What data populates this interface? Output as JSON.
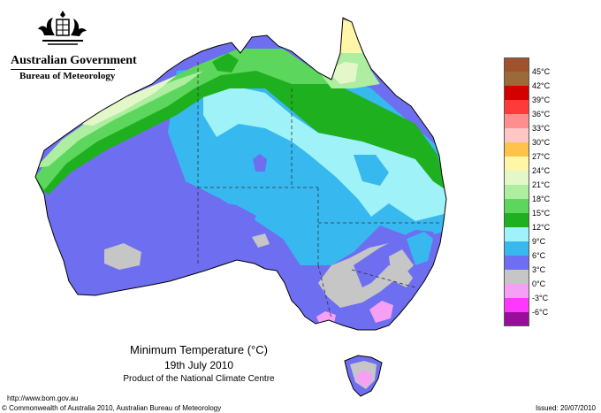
{
  "header": {
    "government": "Australian Government",
    "bureau": "Bureau of Meteorology"
  },
  "map": {
    "title": "Minimum Temperature (°C)",
    "date": "19th July 2010",
    "product": "Product of the National Climate Centre",
    "url": "http://www.bom.gov.au",
    "copyright": "© Commonwealth of Australia 2010, Australian Bureau of Meteorology",
    "issued": "Issued: 20/07/2010"
  },
  "legend": [
    {
      "label": "45°C",
      "color": "#a0522d"
    },
    {
      "label": "42°C",
      "color": "#9c6a3a"
    },
    {
      "label": "39°C",
      "color": "#d40000"
    },
    {
      "label": "36°C",
      "color": "#ff3a3a"
    },
    {
      "label": "33°C",
      "color": "#ff8f8f"
    },
    {
      "label": "30°C",
      "color": "#ffc6c6"
    },
    {
      "label": "27°C",
      "color": "#ffc24a"
    },
    {
      "label": "24°C",
      "color": "#fff6a8"
    },
    {
      "label": "21°C",
      "color": "#e4f7c9"
    },
    {
      "label": "18°C",
      "color": "#aeeea0"
    },
    {
      "label": "15°C",
      "color": "#5cd65c"
    },
    {
      "label": "12°C",
      "color": "#1fb01f"
    },
    {
      "label": "9°C",
      "color": "#9ff2f7"
    },
    {
      "label": "6°C",
      "color": "#37b8ef"
    },
    {
      "label": "3°C",
      "color": "#6e6ef0"
    },
    {
      "label": "0°C",
      "color": "#c6c6c6"
    },
    {
      "label": "-3°C",
      "color": "#f5a0f5"
    },
    {
      "label": "-6°C",
      "color": "#ff38ff"
    },
    {
      "label": "",
      "color": "#9a0d9a"
    }
  ]
}
